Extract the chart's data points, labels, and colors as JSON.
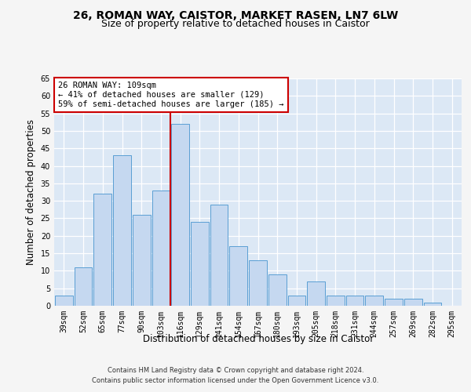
{
  "title1": "26, ROMAN WAY, CAISTOR, MARKET RASEN, LN7 6LW",
  "title2": "Size of property relative to detached houses in Caistor",
  "xlabel": "Distribution of detached houses by size in Caistor",
  "ylabel": "Number of detached properties",
  "categories": [
    "39sqm",
    "52sqm",
    "65sqm",
    "77sqm",
    "90sqm",
    "103sqm",
    "116sqm",
    "129sqm",
    "141sqm",
    "154sqm",
    "167sqm",
    "180sqm",
    "193sqm",
    "205sqm",
    "218sqm",
    "231sqm",
    "244sqm",
    "257sqm",
    "269sqm",
    "282sqm",
    "295sqm"
  ],
  "values": [
    3,
    11,
    32,
    43,
    26,
    33,
    52,
    24,
    29,
    17,
    13,
    9,
    3,
    7,
    3,
    3,
    3,
    2,
    2,
    1,
    0
  ],
  "bar_color": "#c5d8f0",
  "bar_edge_color": "#5a9fd4",
  "vline_color": "#cc0000",
  "annotation_text": "26 ROMAN WAY: 109sqm\n← 41% of detached houses are smaller (129)\n59% of semi-detached houses are larger (185) →",
  "annotation_box_color": "#ffffff",
  "annotation_box_edge": "#cc0000",
  "ylim": [
    0,
    65
  ],
  "yticks": [
    0,
    5,
    10,
    15,
    20,
    25,
    30,
    35,
    40,
    45,
    50,
    55,
    60,
    65
  ],
  "footer1": "Contains HM Land Registry data © Crown copyright and database right 2024.",
  "footer2": "Contains public sector information licensed under the Open Government Licence v3.0.",
  "bg_color": "#dce8f5",
  "grid_color": "#ffffff",
  "fig_bg_color": "#f5f5f5",
  "title1_fontsize": 10,
  "title2_fontsize": 9,
  "tick_fontsize": 7,
  "label_fontsize": 8.5,
  "annotation_fontsize": 7.5,
  "footer_fontsize": 6
}
